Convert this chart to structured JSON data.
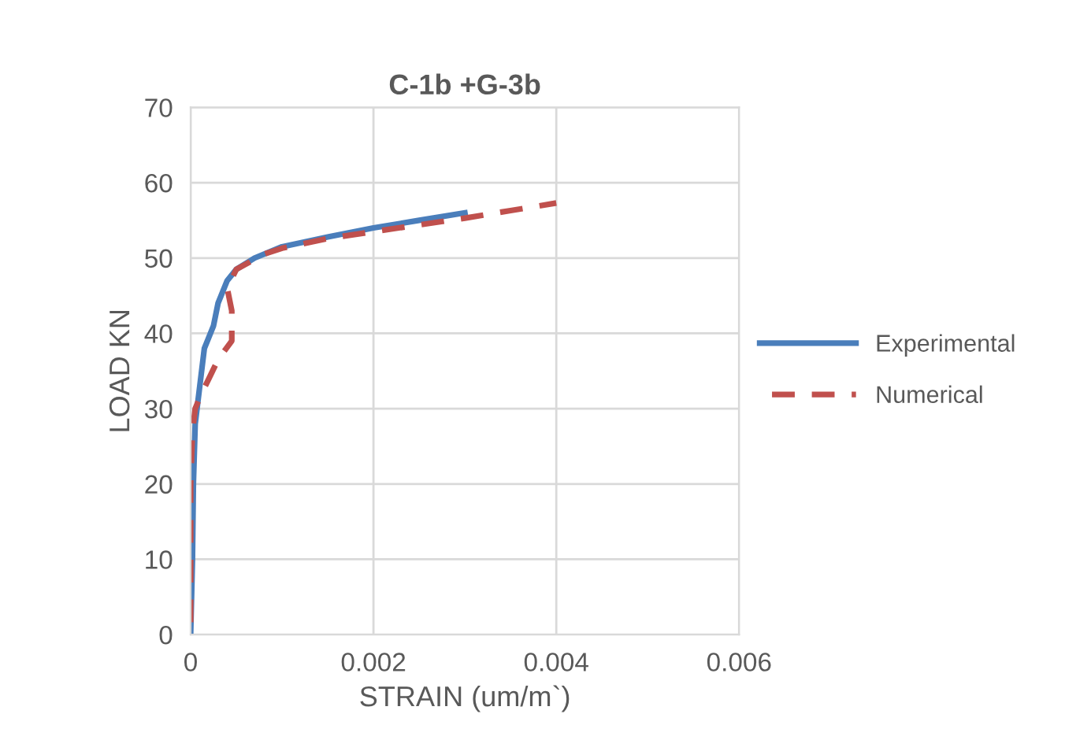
{
  "chart_data": {
    "type": "line",
    "title": "C-1b +G-3b",
    "xlabel": "STRAIN (um/m`)",
    "ylabel": "LOAD KN",
    "series": [
      {
        "name": "Experimental",
        "color": "#4a7ebb",
        "line_style": "solid",
        "x": [
          0,
          2e-05,
          3e-05,
          5e-05,
          0.0001,
          0.00015,
          0.00025,
          0.0003,
          0.0004,
          0.0005,
          0.0007,
          0.001,
          0.0015,
          0.002,
          0.0025,
          0.003
        ],
        "values": [
          0,
          10,
          20,
          28,
          33,
          38,
          41,
          44,
          47,
          48.5,
          50,
          51.5,
          52.8,
          54,
          55,
          56
        ]
      },
      {
        "name": "Numerical",
        "color": "#c0504d",
        "line_style": "dashed",
        "x": [
          0,
          0,
          0,
          2e-05,
          5e-05,
          0.0001,
          0.0002,
          0.0003,
          0.00045,
          0.00045,
          0.0004,
          0.0005,
          0.0008,
          0.001,
          0.0015,
          0.002,
          0.003,
          0.0035,
          0.004
        ],
        "values": [
          0,
          10,
          20,
          27,
          30,
          31.5,
          34,
          36.5,
          39,
          43,
          46,
          48.5,
          50.5,
          51.3,
          52.6,
          53.5,
          55.3,
          56.3,
          57.3
        ]
      }
    ],
    "xlim": [
      0,
      0.006
    ],
    "xticks": [
      0,
      0.002,
      0.004,
      0.006
    ],
    "ylim": [
      0,
      70
    ],
    "yticks": [
      0,
      10,
      20,
      30,
      40,
      50,
      60,
      70
    ],
    "grid": true,
    "legend": "right",
    "marker": "none"
  }
}
